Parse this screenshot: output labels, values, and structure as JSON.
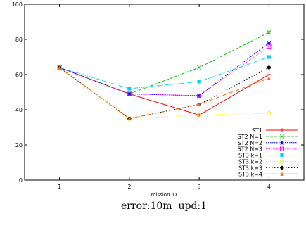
{
  "chart_data": {
    "type": "line",
    "x": [
      1,
      2,
      3,
      4
    ],
    "xlim": [
      0.5,
      4.5
    ],
    "ylim": [
      0,
      100
    ],
    "yticks": [
      0,
      20,
      40,
      60,
      80,
      100
    ],
    "xlabel": "mission ID",
    "ylabel": "",
    "caption": "error:10m  upd:1",
    "legend_position": "bottom-right",
    "grid": false,
    "series": [
      {
        "name": "ST1",
        "values": [
          64,
          49,
          37,
          60
        ],
        "color": "#ff0000",
        "dash": "",
        "marker": "plus"
      },
      {
        "name": "ST2 N=1",
        "values": [
          64,
          49,
          64,
          84
        ],
        "color": "#00c000",
        "dash": "4,2",
        "marker": "x"
      },
      {
        "name": "ST2 N=2",
        "values": [
          64,
          49,
          48,
          78
        ],
        "color": "#0000ff",
        "dash": "1.5,1.5",
        "marker": "star"
      },
      {
        "name": "ST2 N=3",
        "values": [
          64,
          49,
          48,
          76
        ],
        "color": "#ff00ff",
        "dash": "1,1.5",
        "marker": "square"
      },
      {
        "name": "ST3 k=1",
        "values": [
          64,
          52,
          56,
          70
        ],
        "color": "#00d0ff",
        "dash": "6,2,1,2",
        "marker": "filled-square"
      },
      {
        "name": "ST3 k=2",
        "values": [
          64,
          35,
          37,
          38
        ],
        "color": "#f2f20a",
        "dash": "1,2",
        "marker": "circle"
      },
      {
        "name": "ST3 k=3",
        "values": [
          64,
          35,
          43,
          64
        ],
        "color": "#000000",
        "dash": "1.5,2.5",
        "marker": "filled-circle"
      },
      {
        "name": "ST3 k=4",
        "values": [
          64,
          35,
          43,
          58
        ],
        "color": "#ff6600",
        "dash": "5,2,1,2",
        "marker": "triangle"
      }
    ]
  }
}
